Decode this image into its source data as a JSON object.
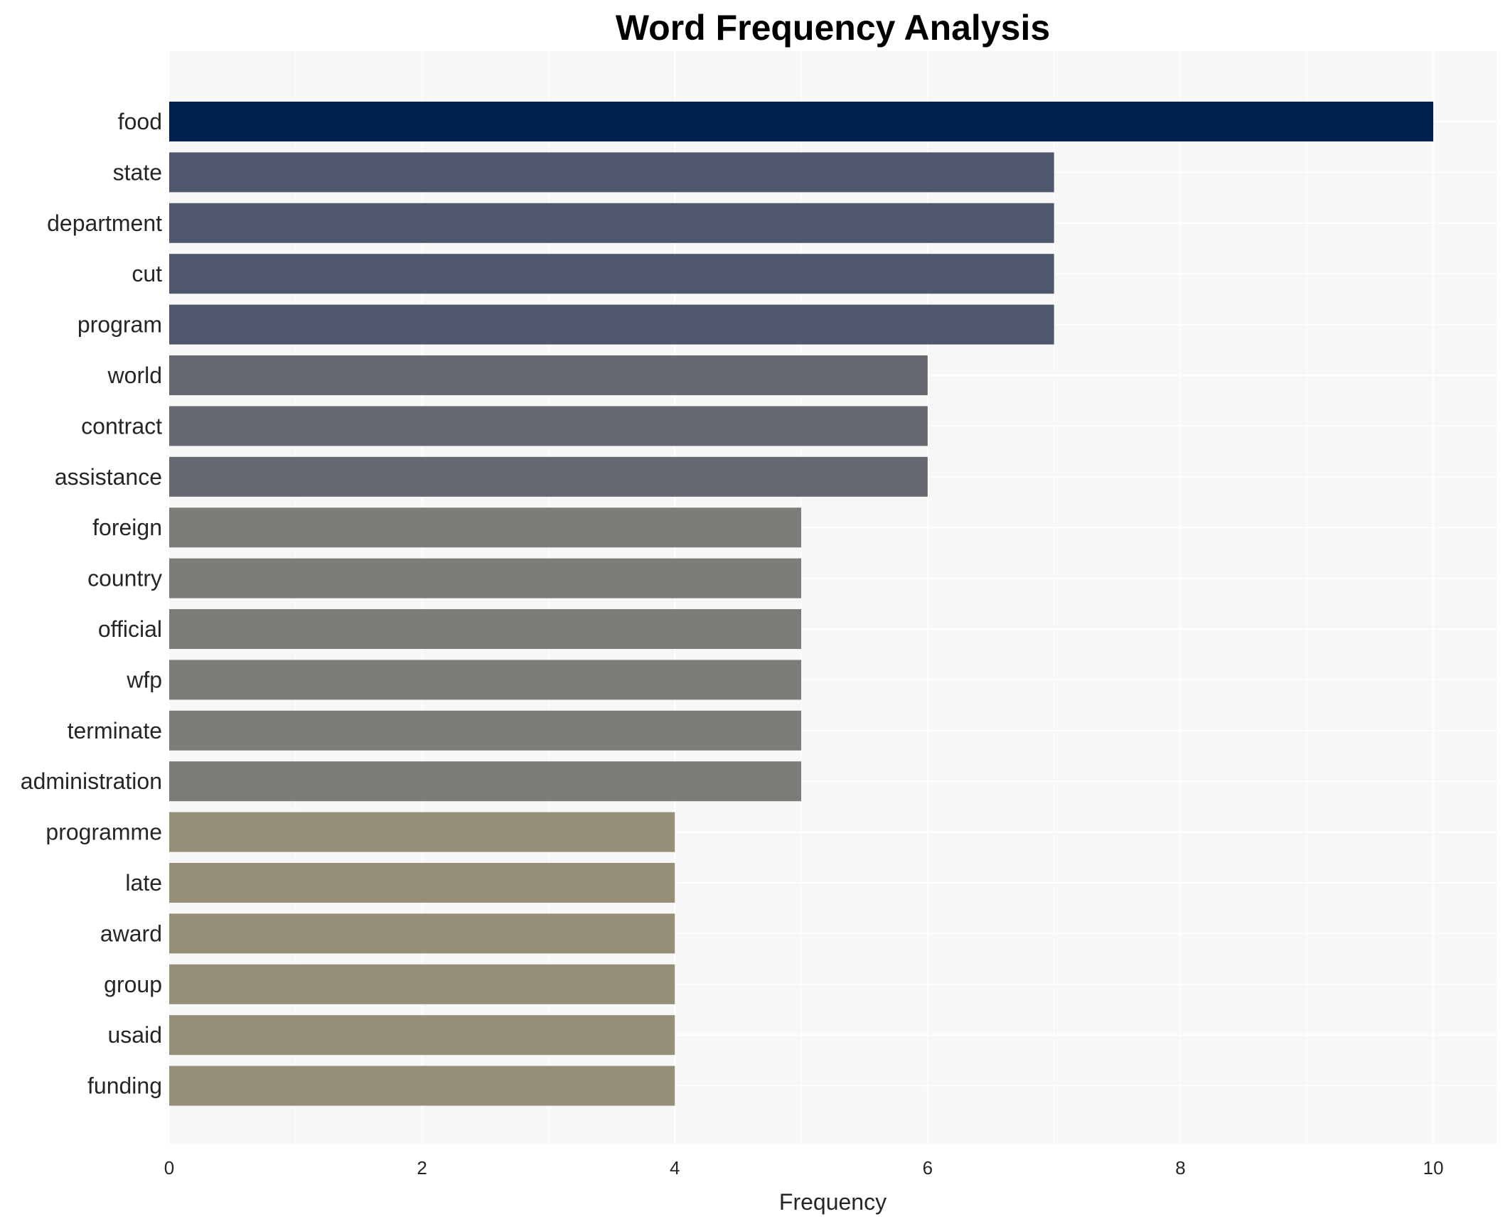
{
  "chart_data": {
    "type": "bar",
    "orientation": "horizontal",
    "title": "Word Frequency Analysis",
    "xlabel": "Frequency",
    "ylabel": "",
    "xlim": [
      0,
      10.5
    ],
    "xticks": [
      0,
      2,
      4,
      6,
      8,
      10
    ],
    "grid": true,
    "categories": [
      "food",
      "state",
      "department",
      "cut",
      "program",
      "world",
      "contract",
      "assistance",
      "foreign",
      "country",
      "official",
      "wfp",
      "terminate",
      "administration",
      "programme",
      "late",
      "award",
      "group",
      "usaid",
      "funding"
    ],
    "values": [
      10,
      7,
      7,
      7,
      7,
      6,
      6,
      6,
      5,
      5,
      5,
      5,
      5,
      5,
      4,
      4,
      4,
      4,
      4,
      4
    ],
    "colors": {
      "10": "#00224e",
      "7": "#4f576c",
      "6": "#666970",
      "5": "#7d7c78",
      "4": "#958f78"
    },
    "plot_background": "#f7f7f7",
    "grid_color": "#ffffff"
  }
}
